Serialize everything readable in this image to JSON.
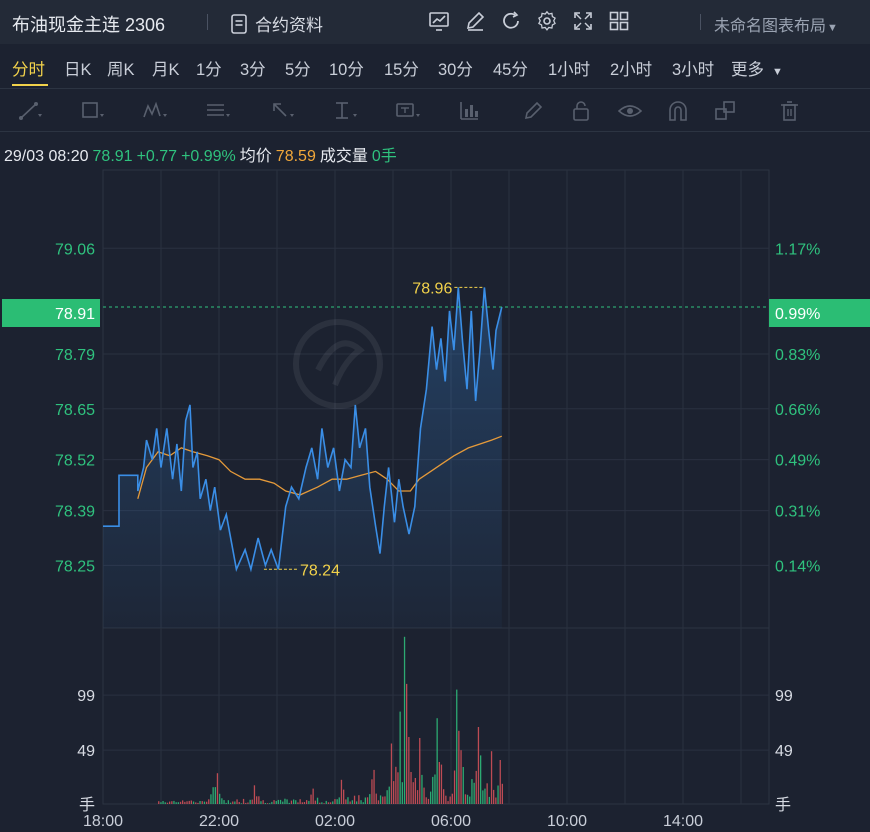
{
  "header": {
    "symbol_title": "布油现金主连 2306",
    "contract_info": "合约资料",
    "layout_name": "未命名图表布局"
  },
  "periods": [
    "分时",
    "日K",
    "周K",
    "月K",
    "1分",
    "3分",
    "5分",
    "10分",
    "15分",
    "30分",
    "45分",
    "1小时",
    "2小时",
    "3小时",
    "更多"
  ],
  "active_period": "分时",
  "info": {
    "datetime": "29/03 08:20",
    "last": "78.91",
    "change": "+0.77",
    "change_pct": "+0.99%",
    "avg_label": "均价",
    "avg_value": "78.59",
    "volume_label": "成交量",
    "volume_value": "0手"
  },
  "colors": {
    "up": "#2fc27e",
    "price_line": "#3a8ee6",
    "avg_line": "#e59a3a",
    "annotation": "#f2d24b",
    "background": "#1c2230"
  },
  "chart_data": {
    "type": "line",
    "x_ticks": [
      "18:00",
      "22:00",
      "02:00",
      "06:00",
      "10:00",
      "14:00"
    ],
    "y_ticks": [
      "79.06",
      "78.79",
      "78.65",
      "78.52",
      "78.39",
      "78.25"
    ],
    "y_pct_ticks": [
      "1.17%",
      "0.83%",
      "0.66%",
      "0.49%",
      "0.31%",
      "0.14%"
    ],
    "current_price_label": "78.91",
    "current_pct_label": "0.99%",
    "ylim": [
      78.09,
      79.26
    ],
    "high_annotation": "78.96",
    "low_annotation": "78.24",
    "volume_ticks": [
      "99",
      "49"
    ],
    "volume_unit": "手",
    "volume_ylim": [
      0,
      160
    ],
    "price_series": [
      [
        0,
        78.35
      ],
      [
        0.55,
        78.35
      ],
      [
        0.55,
        78.48
      ],
      [
        1.2,
        78.48
      ],
      [
        1.2,
        78.44
      ],
      [
        1.4,
        78.5
      ],
      [
        1.5,
        78.57
      ],
      [
        1.7,
        78.52
      ],
      [
        1.85,
        78.6
      ],
      [
        2.0,
        78.5
      ],
      [
        2.2,
        78.6
      ],
      [
        2.4,
        78.47
      ],
      [
        2.55,
        78.56
      ],
      [
        2.7,
        78.44
      ],
      [
        2.85,
        78.62
      ],
      [
        3.0,
        78.66
      ],
      [
        3.1,
        78.5
      ],
      [
        3.25,
        78.54
      ],
      [
        3.35,
        78.42
      ],
      [
        3.55,
        78.47
      ],
      [
        3.7,
        78.39
      ],
      [
        3.85,
        78.45
      ],
      [
        4.05,
        78.34
      ],
      [
        4.25,
        78.38
      ],
      [
        4.45,
        78.3
      ],
      [
        4.6,
        78.24
      ],
      [
        4.9,
        78.29
      ],
      [
        5.1,
        78.24
      ],
      [
        5.35,
        78.32
      ],
      [
        5.6,
        78.25
      ],
      [
        5.8,
        78.29
      ],
      [
        6.05,
        78.24
      ],
      [
        6.3,
        78.4
      ],
      [
        6.5,
        78.45
      ],
      [
        6.75,
        78.42
      ],
      [
        7.0,
        78.5
      ],
      [
        7.2,
        78.55
      ],
      [
        7.4,
        78.47
      ],
      [
        7.55,
        78.6
      ],
      [
        7.75,
        78.5
      ],
      [
        7.95,
        78.55
      ],
      [
        8.15,
        78.44
      ],
      [
        8.35,
        78.52
      ],
      [
        8.55,
        78.5
      ],
      [
        8.7,
        78.66
      ],
      [
        8.85,
        78.55
      ],
      [
        9.05,
        78.6
      ],
      [
        9.2,
        78.45
      ],
      [
        9.4,
        78.35
      ],
      [
        9.55,
        78.28
      ],
      [
        9.7,
        78.4
      ],
      [
        9.85,
        78.5
      ],
      [
        10.05,
        78.36
      ],
      [
        10.2,
        78.47
      ],
      [
        10.35,
        78.4
      ],
      [
        10.55,
        78.33
      ],
      [
        10.75,
        78.4
      ],
      [
        10.95,
        78.6
      ],
      [
        11.15,
        78.7
      ],
      [
        11.35,
        78.86
      ],
      [
        11.5,
        78.75
      ],
      [
        11.65,
        78.83
      ],
      [
        11.8,
        78.72
      ],
      [
        11.95,
        78.9
      ],
      [
        12.1,
        78.8
      ],
      [
        12.25,
        78.96
      ],
      [
        12.4,
        78.82
      ],
      [
        12.55,
        78.7
      ],
      [
        12.7,
        78.9
      ],
      [
        12.85,
        78.67
      ],
      [
        13.0,
        78.8
      ],
      [
        13.15,
        78.96
      ],
      [
        13.3,
        78.85
      ],
      [
        13.45,
        78.75
      ],
      [
        13.55,
        78.85
      ],
      [
        13.75,
        78.91
      ]
    ],
    "avg_series": [
      [
        1.2,
        78.42
      ],
      [
        1.5,
        78.5
      ],
      [
        1.9,
        78.54
      ],
      [
        2.3,
        78.53
      ],
      [
        2.7,
        78.55
      ],
      [
        3.1,
        78.54
      ],
      [
        3.6,
        78.53
      ],
      [
        4.0,
        78.52
      ],
      [
        4.4,
        78.49
      ],
      [
        4.9,
        78.47
      ],
      [
        5.4,
        78.47
      ],
      [
        5.9,
        78.46
      ],
      [
        6.3,
        78.44
      ],
      [
        6.8,
        78.43
      ],
      [
        7.4,
        78.45
      ],
      [
        7.9,
        78.47
      ],
      [
        8.4,
        78.47
      ],
      [
        8.9,
        78.48
      ],
      [
        9.4,
        78.49
      ],
      [
        9.8,
        78.47
      ],
      [
        10.2,
        78.44
      ],
      [
        10.6,
        78.44
      ],
      [
        10.9,
        78.47
      ],
      [
        11.3,
        78.49
      ],
      [
        11.7,
        78.51
      ],
      [
        12.1,
        78.53
      ],
      [
        12.6,
        78.55
      ],
      [
        13.0,
        78.56
      ],
      [
        13.4,
        78.57
      ],
      [
        13.75,
        78.58
      ]
    ],
    "volume_peaks": [
      [
        3.9,
        28
      ],
      [
        5.2,
        17
      ],
      [
        7.2,
        14
      ],
      [
        8.2,
        22
      ],
      [
        9.3,
        31
      ],
      [
        9.9,
        55
      ],
      [
        10.2,
        84
      ],
      [
        10.4,
        152
      ],
      [
        10.9,
        60
      ],
      [
        11.5,
        78
      ],
      [
        12.2,
        104
      ],
      [
        12.9,
        70
      ],
      [
        13.4,
        48
      ],
      [
        13.7,
        40
      ]
    ]
  }
}
